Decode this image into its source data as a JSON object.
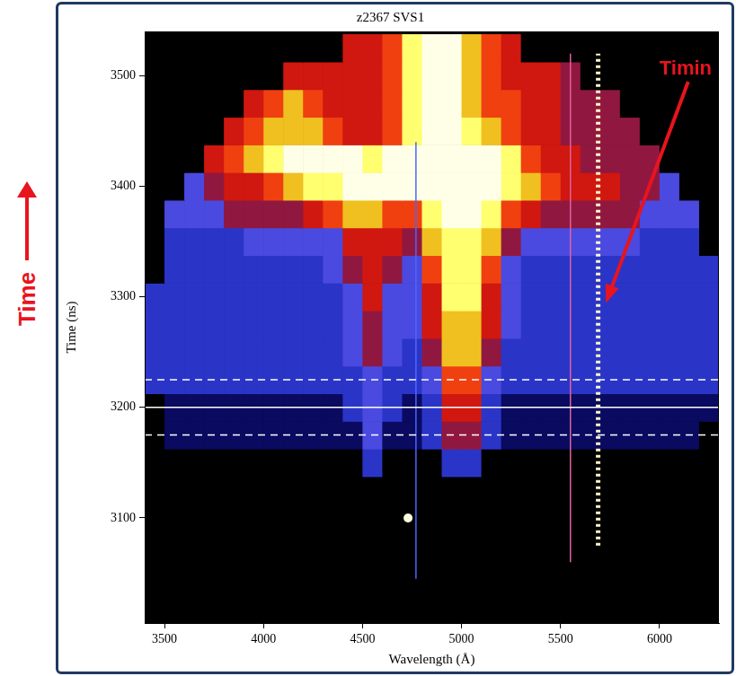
{
  "chart_data": {
    "type": "heatmap",
    "title": "z2367 SVS1",
    "x_label": "Wavelength (Å)",
    "y_label": "Time (ns)",
    "xlim": [
      3400,
      6300
    ],
    "xticks": [
      3500,
      4000,
      4500,
      5000,
      5500,
      6000
    ],
    "ylim": [
      3005,
      3540
    ],
    "yticks": [
      3100,
      3200,
      3300,
      3400,
      3500
    ],
    "grid": false,
    "x": [
      3450,
      3550,
      3650,
      3750,
      3850,
      3950,
      4050,
      4150,
      4250,
      4350,
      4450,
      4550,
      4650,
      4750,
      4850,
      4950,
      5050,
      5150,
      5250,
      5350,
      5450,
      5550,
      5650,
      5750,
      5850,
      5950,
      6050,
      6150,
      6250
    ],
    "y": [
      3025,
      3050,
      3075,
      3100,
      3125,
      3150,
      3175,
      3200,
      3225,
      3250,
      3275,
      3300,
      3325,
      3350,
      3375,
      3400,
      3425,
      3450,
      3475,
      3500,
      3525
    ],
    "zlim": [
      0,
      9
    ],
    "cells": [
      [
        0,
        0,
        0,
        0,
        0,
        0,
        0,
        0,
        0,
        0,
        0,
        0,
        0,
        0,
        0,
        0,
        0,
        0,
        0,
        0,
        0,
        0,
        0,
        0,
        0,
        0,
        0,
        0,
        0
      ],
      [
        0,
        0,
        0,
        0,
        0,
        0,
        0,
        0,
        0,
        0,
        0,
        0,
        0,
        0,
        0,
        0,
        0,
        0,
        0,
        0,
        0,
        0,
        0,
        0,
        0,
        0,
        0,
        0,
        0
      ],
      [
        0,
        0,
        0,
        0,
        0,
        0,
        0,
        0,
        0,
        0,
        0,
        0,
        0,
        0,
        0,
        0,
        0,
        0,
        0,
        0,
        0,
        0,
        0,
        0,
        0,
        0,
        0,
        0,
        0
      ],
      [
        0,
        0,
        0,
        0,
        0,
        0,
        0,
        0,
        0,
        0,
        0,
        0,
        0,
        0,
        0,
        0,
        0,
        0,
        0,
        0,
        0,
        0,
        0,
        0,
        0,
        0,
        0,
        0,
        0
      ],
      [
        0,
        0,
        0,
        0,
        0,
        0,
        0,
        0,
        0,
        0,
        0,
        0,
        0,
        0,
        0,
        0,
        0,
        0,
        0,
        0,
        0,
        0,
        0,
        0,
        0,
        0,
        0,
        0,
        0
      ],
      [
        0,
        0,
        0,
        0,
        0,
        0,
        0,
        0,
        0,
        0,
        0,
        2,
        0,
        0,
        0,
        2,
        2,
        0,
        0,
        0,
        0,
        0,
        0,
        0,
        0,
        0,
        0,
        0,
        0
      ],
      [
        0,
        1,
        1,
        1,
        1,
        1,
        1,
        1,
        1,
        1,
        1,
        3,
        1,
        1,
        2,
        4,
        4,
        2,
        1,
        1,
        1,
        1,
        1,
        1,
        1,
        1,
        1,
        1,
        0
      ],
      [
        0,
        1,
        1,
        1,
        1,
        1,
        1,
        1,
        1,
        1,
        2,
        3,
        2,
        1,
        2,
        5,
        5,
        2,
        1,
        1,
        1,
        1,
        1,
        1,
        1,
        1,
        1,
        1,
        1
      ],
      [
        2,
        2,
        2,
        2,
        2,
        2,
        2,
        2,
        2,
        2,
        2,
        3,
        2,
        2,
        3,
        6,
        6,
        3,
        2,
        2,
        2,
        2,
        2,
        2,
        2,
        2,
        2,
        2,
        2
      ],
      [
        2,
        2,
        2,
        2,
        2,
        2,
        2,
        2,
        2,
        2,
        3,
        4,
        3,
        2,
        4,
        7,
        7,
        4,
        2,
        2,
        2,
        2,
        2,
        2,
        2,
        2,
        2,
        2,
        2
      ],
      [
        2,
        2,
        2,
        2,
        2,
        2,
        2,
        2,
        2,
        2,
        3,
        4,
        3,
        3,
        5,
        7,
        7,
        5,
        3,
        2,
        2,
        2,
        2,
        2,
        2,
        2,
        2,
        2,
        2
      ],
      [
        2,
        2,
        2,
        2,
        2,
        2,
        2,
        2,
        2,
        2,
        3,
        5,
        3,
        3,
        5,
        8,
        8,
        5,
        3,
        2,
        2,
        2,
        2,
        2,
        2,
        2,
        2,
        2,
        2
      ],
      [
        0,
        2,
        2,
        2,
        2,
        2,
        2,
        2,
        2,
        3,
        4,
        5,
        4,
        3,
        6,
        8,
        8,
        6,
        3,
        2,
        2,
        2,
        2,
        2,
        2,
        2,
        2,
        2,
        2
      ],
      [
        0,
        2,
        2,
        2,
        2,
        3,
        3,
        3,
        3,
        3,
        5,
        5,
        5,
        4,
        7,
        8,
        8,
        7,
        4,
        3,
        3,
        3,
        3,
        3,
        3,
        2,
        2,
        2,
        0
      ],
      [
        0,
        3,
        3,
        3,
        4,
        4,
        4,
        4,
        5,
        6,
        7,
        7,
        6,
        6,
        8,
        9,
        9,
        8,
        6,
        5,
        4,
        4,
        4,
        4,
        4,
        3,
        3,
        3,
        0
      ],
      [
        0,
        0,
        3,
        4,
        5,
        5,
        6,
        7,
        8,
        8,
        9,
        9,
        9,
        9,
        9,
        9,
        9,
        9,
        8,
        7,
        6,
        5,
        5,
        5,
        4,
        4,
        3,
        0,
        0
      ],
      [
        0,
        0,
        0,
        5,
        6,
        7,
        8,
        9,
        9,
        9,
        9,
        8,
        9,
        9,
        9,
        9,
        9,
        9,
        8,
        6,
        5,
        5,
        4,
        4,
        4,
        4,
        0,
        0,
        0
      ],
      [
        0,
        0,
        0,
        0,
        5,
        6,
        7,
        7,
        7,
        6,
        5,
        5,
        6,
        8,
        9,
        9,
        8,
        7,
        6,
        5,
        5,
        4,
        4,
        4,
        4,
        0,
        0,
        0,
        0
      ],
      [
        0,
        0,
        0,
        0,
        0,
        5,
        6,
        7,
        6,
        5,
        5,
        5,
        6,
        8,
        9,
        9,
        7,
        6,
        6,
        5,
        5,
        4,
        4,
        4,
        0,
        0,
        0,
        0,
        0
      ],
      [
        0,
        0,
        0,
        0,
        0,
        0,
        0,
        5,
        5,
        5,
        5,
        5,
        6,
        8,
        9,
        9,
        7,
        6,
        5,
        5,
        5,
        4,
        0,
        0,
        0,
        0,
        0,
        0,
        0
      ],
      [
        0,
        0,
        0,
        0,
        0,
        0,
        0,
        0,
        0,
        0,
        5,
        5,
        6,
        8,
        9,
        9,
        7,
        6,
        5,
        0,
        0,
        0,
        0,
        0,
        0,
        0,
        0,
        0,
        0
      ]
    ],
    "overlays": [
      {
        "x": [
          3400,
          6300
        ],
        "y": [
          3200,
          3200
        ],
        "color": "#ffffff",
        "line_style": "solid",
        "marker": "none"
      },
      {
        "x": [
          3400,
          6300
        ],
        "y": [
          3175,
          3175
        ],
        "color": "#ffffff",
        "line_style": "dashed",
        "marker": "none"
      },
      {
        "x": [
          3400,
          6300
        ],
        "y": [
          3225,
          3225
        ],
        "color": "#ffffff",
        "line_style": "dashed",
        "marker": "none"
      },
      {
        "x": [
          5690,
          5690
        ],
        "y": [
          3075,
          3520
        ],
        "color": "#fff6c8",
        "line_style": "dotted",
        "marker": "none"
      },
      {
        "x": [
          5550,
          5550
        ],
        "y": [
          3060,
          3520
        ],
        "color": "#e060a0",
        "line_style": "solid",
        "marker": "none"
      },
      {
        "x": [
          4770,
          4770
        ],
        "y": [
          3045,
          3440
        ],
        "color": "#4a66ff",
        "line_style": "solid",
        "marker": "none"
      },
      {
        "x": [
          4730
        ],
        "y": [
          3100
        ],
        "color": "#ffffe0",
        "line_style": "none",
        "marker": "circle"
      }
    ],
    "annotations": [
      {
        "text": "Timin",
        "color": "#e8141e"
      }
    ]
  },
  "side_label": {
    "text": "Time",
    "color": "#e8141e"
  }
}
